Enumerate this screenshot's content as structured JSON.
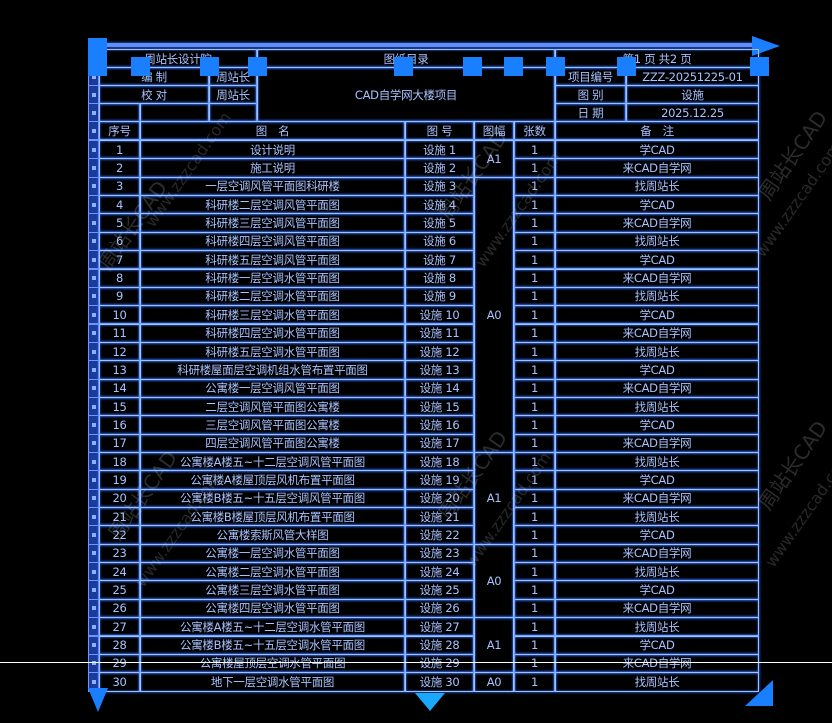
{
  "header": {
    "company": "周站长设计院",
    "title": "图纸目录",
    "page_info": "第1 页 共2 页",
    "prepared_label": "编 制",
    "prepared_by": "周站长",
    "checked_label": "校 对",
    "checked_by": "周站长",
    "project_name": "CAD自学网大楼项目",
    "project_no_label": "项目编号",
    "project_no": "ZZZ-20251225-01",
    "category_label": "图 别",
    "category": "设施",
    "date_label": "日 期",
    "date": "2025.12.25"
  },
  "columns": [
    "序号",
    "图　名",
    "图 号",
    "图幅",
    "张数",
    "备　注"
  ],
  "rows": [
    {
      "no": "1",
      "name": "设计说明",
      "code": "设施 1",
      "sheets": "1",
      "remark": "学CAD"
    },
    {
      "no": "2",
      "name": "施工说明",
      "code": "设施 2",
      "sheets": "1",
      "remark": "来CAD自学网"
    },
    {
      "no": "3",
      "name": "一层空调风管平面图科研楼",
      "code": "设施 3",
      "sheets": "1",
      "remark": "找周站长"
    },
    {
      "no": "4",
      "name": "科研楼二层空调风管平面图",
      "code": "设施 4",
      "sheets": "1",
      "remark": "学CAD"
    },
    {
      "no": "5",
      "name": "科研楼三层空调风管平面图",
      "code": "设施 5",
      "sheets": "1",
      "remark": "来CAD自学网"
    },
    {
      "no": "6",
      "name": "科研楼四层空调风管平面图",
      "code": "设施 6",
      "sheets": "1",
      "remark": "找周站长"
    },
    {
      "no": "7",
      "name": "科研楼五层空调风管平面图",
      "code": "设施 7",
      "sheets": "1",
      "remark": "学CAD"
    },
    {
      "no": "8",
      "name": "科研楼一层空调水管平面图",
      "code": "设施 8",
      "sheets": "1",
      "remark": "来CAD自学网"
    },
    {
      "no": "9",
      "name": "科研楼二层空调水管平面图",
      "code": "设施 9",
      "sheets": "1",
      "remark": "找周站长"
    },
    {
      "no": "10",
      "name": "科研楼三层空调水管平面图",
      "code": "设施 10",
      "sheets": "1",
      "remark": "学CAD"
    },
    {
      "no": "11",
      "name": "科研楼四层空调水管平面图",
      "code": "设施 11",
      "sheets": "1",
      "remark": "来CAD自学网"
    },
    {
      "no": "12",
      "name": "科研楼五层空调水管平面图",
      "code": "设施 12",
      "sheets": "1",
      "remark": "找周站长"
    },
    {
      "no": "13",
      "name": "科研楼屋面层空调机组水管布置平面图",
      "code": "设施 13",
      "sheets": "1",
      "remark": "学CAD"
    },
    {
      "no": "14",
      "name": "公寓楼一层空调风管平面图",
      "code": "设施 14",
      "sheets": "1",
      "remark": "来CAD自学网"
    },
    {
      "no": "15",
      "name": "二层空调风管平面图公寓楼",
      "code": "设施 15",
      "sheets": "1",
      "remark": "找周站长"
    },
    {
      "no": "16",
      "name": "三层空调风管平面图公寓楼",
      "code": "设施 16",
      "sheets": "1",
      "remark": "学CAD"
    },
    {
      "no": "17",
      "name": "四层空调风管平面图公寓楼",
      "code": "设施 17",
      "sheets": "1",
      "remark": "来CAD自学网"
    },
    {
      "no": "18",
      "name": "公寓楼A楼五~十二层空调风管平面图",
      "code": "设施 18",
      "sheets": "1",
      "remark": "找周站长"
    },
    {
      "no": "19",
      "name": "公寓楼A楼屋顶层风机布置平面图",
      "code": "设施 19",
      "sheets": "1",
      "remark": "学CAD"
    },
    {
      "no": "20",
      "name": "公寓楼B楼五~十五层空调风管平面图",
      "code": "设施 20",
      "sheets": "1",
      "remark": "来CAD自学网"
    },
    {
      "no": "21",
      "name": "公寓楼B楼屋顶层风机布置平面图",
      "code": "设施 21",
      "sheets": "1",
      "remark": "找周站长"
    },
    {
      "no": "22",
      "name": "公寓楼索斯风管大样图",
      "code": "设施 22",
      "sheets": "1",
      "remark": "学CAD"
    },
    {
      "no": "23",
      "name": "公寓楼一层空调水管平面图",
      "code": "设施 23",
      "sheets": "1",
      "remark": "来CAD自学网"
    },
    {
      "no": "24",
      "name": "公寓楼二层空调水管平面图",
      "code": "设施 24",
      "sheets": "1",
      "remark": "找周站长"
    },
    {
      "no": "25",
      "name": "公寓楼三层空调水管平面图",
      "code": "设施 25",
      "sheets": "1",
      "remark": "学CAD"
    },
    {
      "no": "26",
      "name": "公寓楼四层空调水管平面图",
      "code": "设施 26",
      "sheets": "1",
      "remark": "来CAD自学网"
    },
    {
      "no": "27",
      "name": "公寓楼A楼五~十二层空调水管平面图",
      "code": "设施 27",
      "sheets": "1",
      "remark": "找周站长"
    },
    {
      "no": "28",
      "name": "公寓楼B楼五~十五层空调水管平面图",
      "code": "设施 28",
      "sheets": "1",
      "remark": "学CAD"
    },
    {
      "no": "29",
      "name": "公寓楼屋顶层空调水管平面图",
      "code": "设施 29",
      "sheets": "1",
      "remark": "来CAD自学网"
    },
    {
      "no": "30",
      "name": "地下一层空调水管平面图",
      "code": "设施 30",
      "sheets": "1",
      "remark": "找周站长"
    }
  ],
  "size_groups": [
    {
      "size": "A1",
      "start": 1,
      "end": 2
    },
    {
      "size": "A0",
      "start": 3,
      "end": 17
    },
    {
      "size": "A1",
      "start": 18,
      "end": 22
    },
    {
      "size": "A0",
      "start": 23,
      "end": 26
    },
    {
      "size": "A1",
      "start": 27,
      "end": 29
    },
    {
      "size": "A0",
      "start": 30,
      "end": 30
    }
  ],
  "watermarks": {
    "brand": "周站长CAD",
    "url": "www.zzzcad.com"
  },
  "colors": {
    "background": "#000000",
    "line": "#9fc0ff",
    "text": "#a8c2ff",
    "grip": "#1a7fff"
  }
}
